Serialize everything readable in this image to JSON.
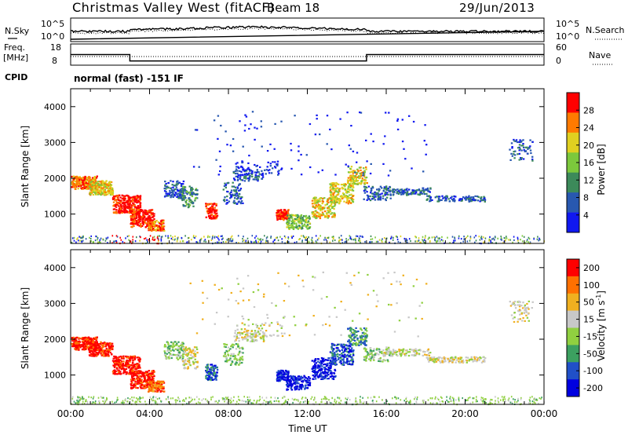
{
  "header": {
    "title": "Christmas Valley West (fitACF)",
    "beam": "Beam 18",
    "date": "29/Jun/2013"
  },
  "noise_panel": {
    "left_label": "N.Sky",
    "right_label": "N.Search",
    "y_ticks": [
      "10^5",
      "10^0"
    ]
  },
  "freq_panel": {
    "left_label_line1": "Freq.",
    "left_label_line2": "[MHz]",
    "right_label": "Nave",
    "left_ticks": [
      "18",
      "8"
    ],
    "right_ticks": [
      "60",
      "0"
    ],
    "freq_steps": [
      {
        "from": "00:00",
        "to": "03:00",
        "value": 13
      },
      {
        "from": "03:00",
        "to": "15:00",
        "value": 10
      },
      {
        "from": "15:00",
        "to": "24:00",
        "value": 13
      }
    ]
  },
  "cpid": {
    "label": "CPID",
    "value": "normal (fast) -151 IF"
  },
  "chart_data": [
    {
      "type": "heatmap",
      "name": "power",
      "ylabel": "Slant Range [km]",
      "xlabel": "",
      "ylim": [
        180,
        4500
      ],
      "xlim": [
        "00:00",
        "24:00"
      ],
      "y_ticks": [
        "1000",
        "2000",
        "3000",
        "4000"
      ],
      "colorbar_label": "Power [dB]",
      "colorbar_ticks": [
        "4",
        "8",
        "12",
        "16",
        "20",
        "24",
        "28"
      ],
      "colorbar_colors": [
        "#1018f0",
        "#2858b0",
        "#3c8a5a",
        "#7cc83c",
        "#e0d020",
        "#ff7a00",
        "#ff0000"
      ]
    },
    {
      "type": "heatmap",
      "name": "velocity",
      "ylabel": "Slant Range [km]",
      "xlabel": "Time UT",
      "ylim": [
        180,
        4500
      ],
      "xlim": [
        "00:00",
        "24:00"
      ],
      "y_ticks": [
        "1000",
        "2000",
        "3000",
        "4000"
      ],
      "x_ticks": [
        "00:00",
        "04:00",
        "08:00",
        "12:00",
        "16:00",
        "20:00",
        "00:00"
      ],
      "colorbar_label_main": "Velocity [m s",
      "colorbar_label_sup": "-1",
      "colorbar_label_close": "]",
      "colorbar_ticks": [
        "200",
        "100",
        "50",
        "15",
        "-15",
        "-50",
        "-100",
        "-200"
      ],
      "colorbar_colors": [
        "#0000e0",
        "#2050c8",
        "#3ca060",
        "#90d040",
        "#c8c8c8",
        "#f0b020",
        "#ff7000",
        "#ff0000"
      ]
    }
  ]
}
